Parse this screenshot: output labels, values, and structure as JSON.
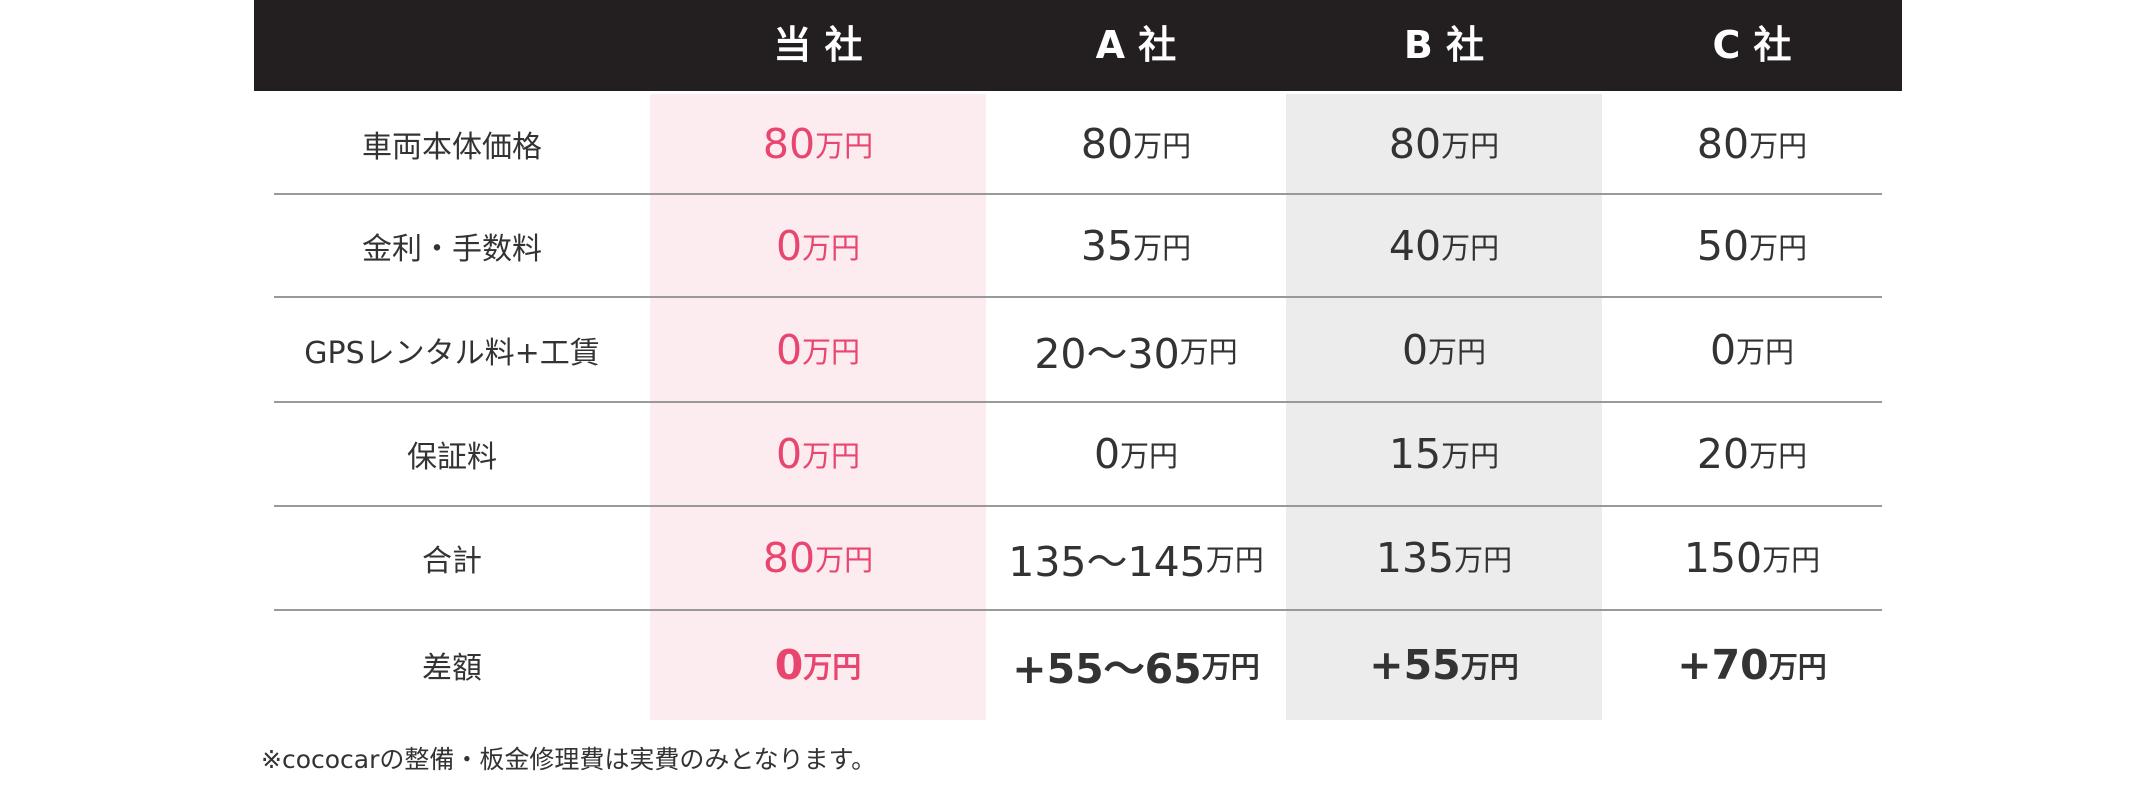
{
  "colors": {
    "header_bg": "#231f20",
    "own_col_bg": "#fcebef",
    "b_col_bg": "#ececec",
    "accent": "#e8456f"
  },
  "header": [
    "",
    "当 社",
    "A 社",
    "B 社",
    "C 社"
  ],
  "unit": "万円",
  "rows": [
    {
      "label": "車両本体価格",
      "values": [
        "80",
        "80",
        "80",
        "80"
      ]
    },
    {
      "label": "金利・手数料",
      "values": [
        "0",
        "35",
        "40",
        "50"
      ]
    },
    {
      "label": "GPSレンタル料+工賃",
      "values": [
        "0",
        "20～30",
        "0",
        "0"
      ]
    },
    {
      "label": "保証料",
      "values": [
        "0",
        "0",
        "15",
        "20"
      ]
    },
    {
      "label": "合計",
      "values": [
        "80",
        "135～145",
        "135",
        "150"
      ]
    },
    {
      "label": "差額",
      "values": [
        "0",
        "+55～65",
        "+55",
        "+70"
      ]
    }
  ],
  "note": "※cococarの整備・板金修理費は実費のみとなります。"
}
